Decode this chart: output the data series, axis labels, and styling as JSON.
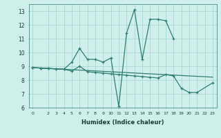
{
  "xlabel": "Humidex (Indice chaleur)",
  "x_values": [
    0,
    1,
    2,
    3,
    4,
    5,
    6,
    7,
    8,
    9,
    10,
    11,
    12,
    13,
    14,
    15,
    16,
    17,
    18,
    19,
    20,
    21,
    22,
    23
  ],
  "line1_y": [
    8.9,
    8.87,
    8.84,
    8.81,
    8.78,
    8.75,
    8.72,
    8.69,
    8.66,
    8.63,
    8.6,
    8.57,
    8.54,
    8.51,
    8.48,
    8.45,
    8.42,
    8.39,
    8.36,
    8.33,
    8.3,
    8.27,
    8.24,
    8.21
  ],
  "line2_y": [
    8.9,
    8.87,
    8.84,
    8.81,
    8.78,
    9.3,
    10.3,
    9.5,
    9.5,
    9.3,
    9.6,
    6.1,
    11.4,
    13.1,
    9.5,
    12.4,
    12.4,
    12.3,
    11.0,
    null,
    null,
    null,
    null,
    null
  ],
  "line3_y": [
    8.9,
    8.87,
    8.84,
    8.81,
    8.78,
    8.65,
    9.0,
    8.6,
    8.55,
    8.5,
    8.45,
    8.4,
    8.35,
    8.3,
    8.25,
    8.2,
    8.15,
    8.4,
    8.3,
    7.4,
    7.1,
    7.1,
    null,
    7.8
  ],
  "line_color": "#2e7d6e",
  "bg_color": "#cff0ea",
  "grid_color": "#aad8d0",
  "ylim": [
    6,
    13.5
  ],
  "xlim": [
    -0.5,
    23.5
  ],
  "yticks": [
    6,
    7,
    8,
    9,
    10,
    11,
    12,
    13
  ],
  "xticks": [
    0,
    2,
    3,
    4,
    5,
    6,
    7,
    8,
    9,
    10,
    11,
    12,
    13,
    14,
    15,
    16,
    17,
    18,
    19,
    20,
    21,
    22,
    23
  ]
}
